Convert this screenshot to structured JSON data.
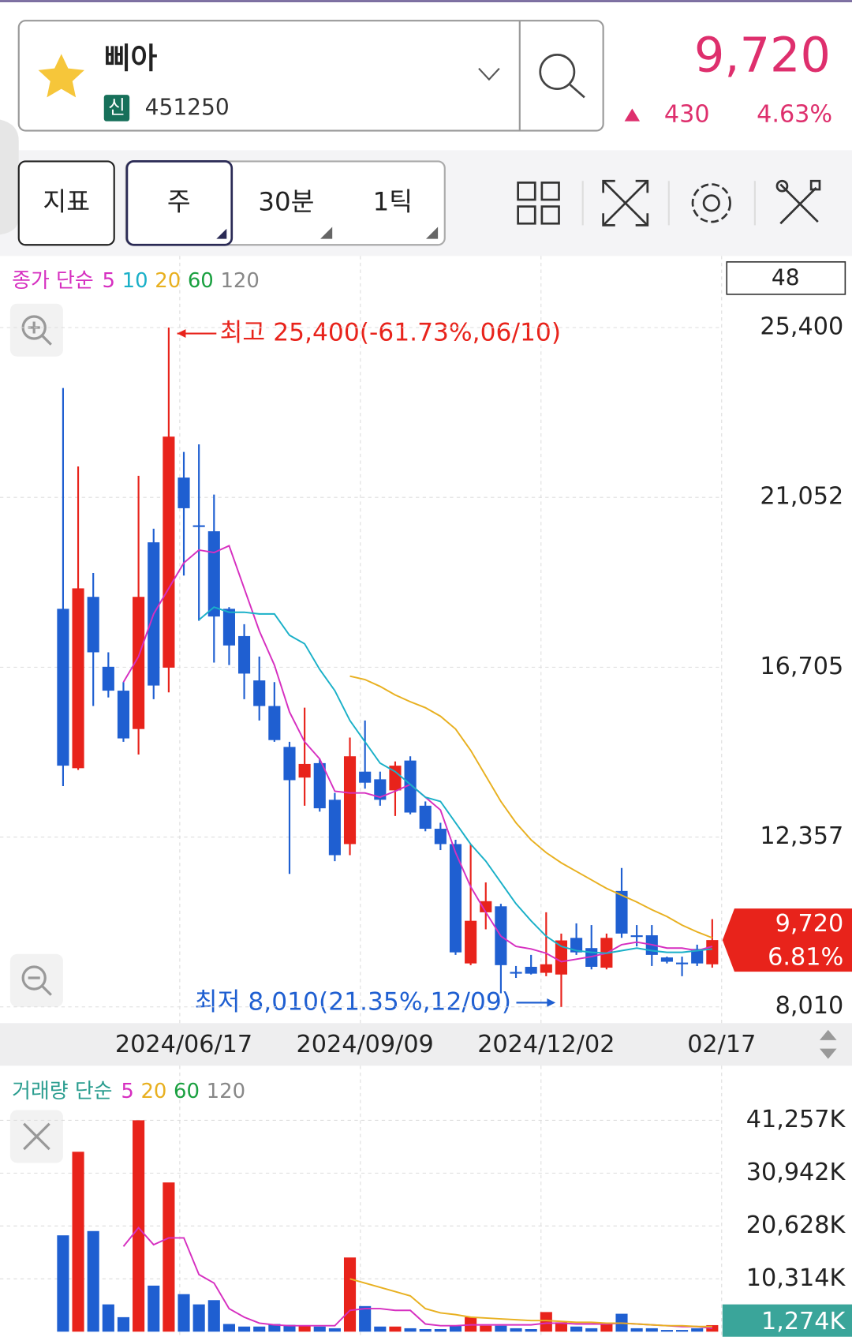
{
  "header": {
    "name": "삐아",
    "badge": "신",
    "code": "451250",
    "price": "9,720",
    "change": "430",
    "change_pct": "4.63%"
  },
  "toolbar": {
    "buttons": [
      "지표",
      "주",
      "30분",
      "1틱"
    ]
  },
  "price_chart": {
    "type": "candlestick",
    "legend_title": "종가 단순",
    "counter": "48",
    "categories": [
      null,
      null,
      null,
      null,
      null,
      null,
      null,
      null,
      "2024/06/17",
      null,
      null,
      null,
      null,
      null,
      null,
      null,
      null,
      null,
      null,
      null,
      "2024/09/09",
      null,
      null,
      null,
      null,
      null,
      null,
      null,
      null,
      null,
      null,
      null,
      "2024/12/02",
      null,
      null,
      null,
      null,
      null,
      null,
      null,
      null,
      null,
      null,
      "02/17"
    ],
    "open": [
      18200,
      14120,
      18506,
      16716,
      16105,
      15123,
      19902,
      16694,
      21560,
      20338,
      20185,
      18200,
      17502,
      16367,
      15712,
      14665,
      13880,
      14250,
      13312,
      12178,
      14032,
      13836,
      13552,
      14316,
      13160,
      12570,
      12178,
      9123,
      10432,
      10585,
      8905,
      9036,
      8883,
      8839,
      9777,
      9516,
      9014,
      10978,
      9843,
      9843,
      9276,
      9145,
      9494,
      9100
    ],
    "high": [
      23851,
      21844,
      19116,
      17087,
      16323,
      21604,
      20251,
      25400,
      22215,
      22411,
      21124,
      18244,
      17807,
      16978,
      16323,
      14796,
      15669,
      14360,
      13487,
      14905,
      15342,
      14032,
      14294,
      14425,
      13269,
      12723,
      12287,
      12178,
      11196,
      10650,
      9057,
      9341,
      10432,
      9887,
      10148,
      10105,
      9887,
      11567,
      10105,
      10105,
      9297,
      9297,
      9603,
      10257
    ],
    "low": [
      13661,
      14076,
      15712,
      15931,
      14796,
      14469,
      15887,
      16062,
      19051,
      17895,
      16825,
      16760,
      15887,
      15342,
      14796,
      11414,
      13160,
      13007,
      11741,
      11894,
      13596,
      13160,
      12898,
      12941,
      12505,
      12025,
      9341,
      9079,
      9996,
      8359,
      8752,
      8839,
      8796,
      8010,
      9341,
      8970,
      8970,
      9777,
      9559,
      9057,
      9123,
      8796,
      9057,
      9014
    ],
    "close": [
      14185,
      18724,
      17087,
      16105,
      14883,
      18506,
      16236,
      22608,
      20775,
      20316,
      18003,
      17262,
      16542,
      15712,
      14840,
      13814,
      14229,
      13094,
      11894,
      14425,
      13749,
      13312,
      14185,
      12985,
      12570,
      12178,
      9406,
      10214,
      10716,
      9079,
      8883,
      8861,
      9101,
      9712,
      9406,
      9036,
      9777,
      9887,
      9821,
      9341,
      9166,
      9123,
      9123,
      9720
    ],
    "up_color": "#e8231b",
    "down_color": "#1f5fd1",
    "series": [
      {
        "name": "5",
        "color": "#d62fc0",
        "values": [
          null,
          null,
          null,
          null,
          16323,
          16978,
          18069,
          18724,
          19378,
          19706,
          19640,
          19815,
          18724,
          17633,
          16760,
          15560,
          14796,
          14360,
          13530,
          13487,
          13487,
          13378,
          13530,
          13705,
          13378,
          13051,
          11959,
          11087,
          10432,
          9821,
          9559,
          9494,
          9385,
          9166,
          9232,
          9297,
          9385,
          9603,
          9668,
          9603,
          9516,
          9516,
          9450,
          9559
        ]
      },
      {
        "name": "10",
        "color": "#1ab0c8",
        "values": [
          null,
          null,
          null,
          null,
          null,
          null,
          null,
          null,
          null,
          17916,
          18244,
          18113,
          18113,
          18069,
          18069,
          17523,
          17305,
          16651,
          16105,
          15342,
          14796,
          14250,
          14032,
          13705,
          13378,
          13269,
          12723,
          12178,
          11741,
          11196,
          10650,
          10214,
          9821,
          9559,
          9450,
          9406,
          9385,
          9450,
          9516,
          9450,
          9406,
          9406,
          9450,
          9494
        ]
      },
      {
        "name": "20",
        "color": "#e8b020",
        "values": [
          null,
          null,
          null,
          null,
          null,
          null,
          null,
          null,
          null,
          null,
          null,
          null,
          null,
          null,
          null,
          null,
          null,
          null,
          null,
          16476,
          16389,
          16214,
          15996,
          15822,
          15669,
          15451,
          15123,
          14578,
          13923,
          13269,
          12723,
          12287,
          11959,
          11698,
          11479,
          11261,
          11043,
          10868,
          10694,
          10497,
          10323,
          10105,
          9930,
          9777
        ]
      },
      {
        "name": "60",
        "color": "#1aa040",
        "values": [
          null,
          null,
          null,
          null,
          null,
          null,
          null,
          null,
          null,
          null,
          null,
          null,
          null,
          null,
          null,
          null,
          null,
          null,
          null,
          null,
          null,
          null,
          null,
          null,
          null,
          null,
          null,
          null,
          null,
          null,
          null,
          null,
          null,
          null,
          null,
          null,
          null,
          null,
          null,
          null,
          null,
          null,
          null,
          null
        ]
      },
      {
        "name": "120",
        "color": "#888888",
        "values": [
          null,
          null,
          null,
          null,
          null,
          null,
          null,
          null,
          null,
          null,
          null,
          null,
          null,
          null,
          null,
          null,
          null,
          null,
          null,
          null,
          null,
          null,
          null,
          null,
          null,
          null,
          null,
          null,
          null,
          null,
          null,
          null,
          null,
          null,
          null,
          null,
          null,
          null,
          null,
          null,
          null,
          null,
          null,
          null
        ]
      }
    ],
    "ylim": [
      8010,
      25400
    ],
    "yticks": [
      {
        "value": 25400,
        "label": "25,400"
      },
      {
        "value": 21052,
        "label": "21,052"
      },
      {
        "value": 16705,
        "label": "16,705"
      },
      {
        "value": 12357,
        "label": "12,357"
      },
      {
        "value": 8010,
        "label": "8,010"
      }
    ],
    "grid": true,
    "high_annotation": "최고 25,400(-61.73%,06/10)",
    "low_annotation": "최저 8,010(21.35%,12/09)",
    "current_price_label": "9,720",
    "current_change_label": "6.81%"
  },
  "volume_chart": {
    "type": "bar",
    "legend_title": "거래량 단순",
    "values": [
      18800,
      35110,
      19635,
      5325,
      2829,
      41257,
      8986,
      29120,
      7322,
      5325,
      6157,
      1498,
      998,
      998,
      1498,
      1331,
      1165,
      998,
      666,
      14477,
      4992,
      998,
      998,
      666,
      499,
      499,
      1165,
      2829,
      1165,
      1165,
      666,
      499,
      3827,
      1830,
      998,
      666,
      1664,
      3494,
      666,
      666,
      333,
      333,
      666,
      1274
    ],
    "series": [
      {
        "name": "5",
        "color": "#d62fc0",
        "values": [
          null,
          null,
          null,
          null,
          16640,
          20300,
          16973,
          18304,
          18304,
          11150,
          9485,
          4493,
          2829,
          1664,
          1331,
          1165,
          1165,
          1165,
          1165,
          4160,
          4493,
          4493,
          4160,
          4160,
          1498,
          1165,
          1165,
          1331,
          1331,
          1331,
          1331,
          1331,
          1664,
          1664,
          1498,
          1498,
          1498,
          1664,
          1498,
          1331,
          1164,
          998,
          998,
          666
        ]
      },
      {
        "name": "20",
        "color": "#e8b020",
        "values": [
          null,
          null,
          null,
          null,
          null,
          null,
          null,
          null,
          null,
          null,
          null,
          null,
          null,
          null,
          null,
          null,
          null,
          null,
          null,
          10314,
          9485,
          8653,
          7821,
          6989,
          4493,
          3661,
          3328,
          2829,
          2662,
          2496,
          2330,
          2163,
          2163,
          1997,
          1830,
          1830,
          1664,
          1664,
          1498,
          1331,
          1165,
          1165,
          998,
          998
        ]
      },
      {
        "name": "60",
        "color": "#1aa040",
        "values": [
          null,
          null,
          null,
          null,
          null,
          null,
          null,
          null,
          null,
          null,
          null,
          null,
          null,
          null,
          null,
          null,
          null,
          null,
          null,
          null,
          null,
          null,
          null,
          null,
          null,
          null,
          null,
          null,
          null,
          null,
          null,
          null,
          null,
          null,
          null,
          null,
          null,
          null,
          null,
          null,
          null,
          null,
          null,
          null
        ]
      },
      {
        "name": "120",
        "color": "#888888",
        "values": [
          null,
          null,
          null,
          null,
          null,
          null,
          null,
          null,
          null,
          null,
          null,
          null,
          null,
          null,
          null,
          null,
          null,
          null,
          null,
          null,
          null,
          null,
          null,
          null,
          null,
          null,
          null,
          null,
          null,
          null,
          null,
          null,
          null,
          null,
          null,
          null,
          null,
          null,
          null,
          null,
          null,
          null,
          null,
          null
        ]
      }
    ],
    "ylim": [
      0,
      41257
    ],
    "yticks": [
      {
        "value": 41257,
        "label": "41,257K"
      },
      {
        "value": 30942,
        "label": "30,942K"
      },
      {
        "value": 20628,
        "label": "20,628K"
      },
      {
        "value": 10314,
        "label": "10,314K"
      }
    ],
    "grid": true,
    "current_label": "1,274K"
  }
}
